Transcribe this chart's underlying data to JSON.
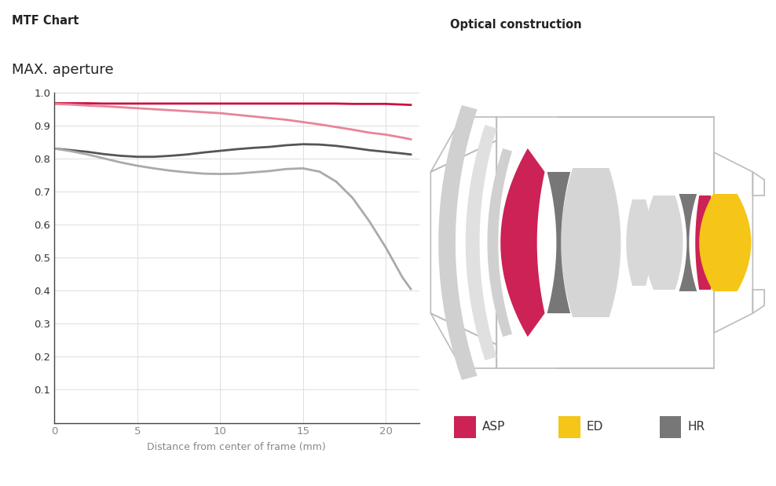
{
  "mtf_title": "MTF Chart",
  "aperture_label": "MAX. aperture",
  "xlabel": "Distance from center of frame (mm)",
  "xlim": [
    0,
    22
  ],
  "ylim": [
    0,
    1.0
  ],
  "yticks": [
    0.1,
    0.2,
    0.3,
    0.4,
    0.5,
    0.6,
    0.7,
    0.8,
    0.9,
    1.0
  ],
  "xticks": [
    0,
    5,
    10,
    15,
    20
  ],
  "grid_color": "#dddddd",
  "bg_color": "#ffffff",
  "optical_title": "Optical construction",
  "legend_items": [
    {
      "label": "ASP",
      "color": "#cc2255"
    },
    {
      "label": "ED",
      "color": "#f5c518"
    },
    {
      "label": "HR",
      "color": "#777777"
    }
  ],
  "lines": [
    {
      "x": [
        0,
        1,
        2,
        3,
        4,
        5,
        6,
        7,
        8,
        9,
        10,
        11,
        12,
        13,
        14,
        15,
        16,
        17,
        18,
        19,
        20,
        21,
        21.5
      ],
      "y": [
        0.967,
        0.967,
        0.967,
        0.966,
        0.966,
        0.966,
        0.966,
        0.966,
        0.966,
        0.966,
        0.966,
        0.966,
        0.966,
        0.966,
        0.966,
        0.966,
        0.966,
        0.966,
        0.965,
        0.965,
        0.965,
        0.963,
        0.962
      ],
      "color": "#cc1144",
      "linewidth": 2.0
    },
    {
      "x": [
        0,
        1,
        2,
        3,
        4,
        5,
        6,
        7,
        8,
        9,
        10,
        11,
        12,
        13,
        14,
        15,
        16,
        17,
        18,
        19,
        20,
        21,
        21.5
      ],
      "y": [
        0.965,
        0.963,
        0.96,
        0.958,
        0.955,
        0.952,
        0.949,
        0.946,
        0.943,
        0.94,
        0.937,
        0.932,
        0.927,
        0.922,
        0.917,
        0.91,
        0.903,
        0.895,
        0.887,
        0.878,
        0.872,
        0.863,
        0.858
      ],
      "color": "#e8849a",
      "linewidth": 2.0
    },
    {
      "x": [
        0,
        1,
        2,
        3,
        4,
        5,
        6,
        7,
        8,
        9,
        10,
        11,
        12,
        13,
        14,
        15,
        16,
        17,
        18,
        19,
        20,
        21,
        21.5
      ],
      "y": [
        0.83,
        0.825,
        0.82,
        0.813,
        0.808,
        0.805,
        0.805,
        0.808,
        0.812,
        0.818,
        0.823,
        0.828,
        0.832,
        0.835,
        0.84,
        0.843,
        0.842,
        0.838,
        0.832,
        0.825,
        0.82,
        0.815,
        0.812
      ],
      "color": "#555555",
      "linewidth": 2.0
    },
    {
      "x": [
        0,
        1,
        2,
        3,
        4,
        5,
        6,
        7,
        8,
        9,
        10,
        11,
        12,
        13,
        14,
        15,
        16,
        17,
        18,
        19,
        20,
        21,
        21.5
      ],
      "y": [
        0.83,
        0.822,
        0.812,
        0.8,
        0.788,
        0.778,
        0.77,
        0.763,
        0.758,
        0.754,
        0.753,
        0.754,
        0.758,
        0.762,
        0.768,
        0.77,
        0.76,
        0.73,
        0.68,
        0.61,
        0.53,
        0.44,
        0.405
      ],
      "color": "#aaaaaa",
      "linewidth": 2.0
    }
  ]
}
